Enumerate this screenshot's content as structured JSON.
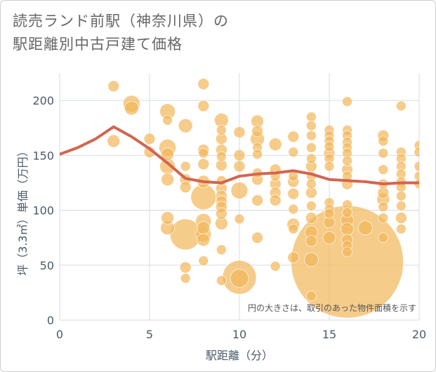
{
  "title_lines": [
    "読売ランド前駅（神奈川県）の",
    "駅距離別中古戸建て価格"
  ],
  "colors": {
    "bubble": "#f2b75a",
    "line": "#d3654f",
    "grid": "#d5dbe3",
    "plot_bg": "#ffffff"
  },
  "chart_data": {
    "type": "scatter",
    "title": "読売ランド前駅（神奈川県）の駅距離別中古戸建て価格",
    "xlabel": "駅距離（分）",
    "ylabel": "坪（3.3㎡）単価（万円）",
    "xlim": [
      0,
      20
    ],
    "ylim": [
      0,
      225
    ],
    "xticks": [
      0,
      5,
      10,
      15,
      20
    ],
    "yticks": [
      0,
      50,
      100,
      150,
      200
    ],
    "note": "円の大きさは、取引のあった物件面積を示す",
    "series": [
      {
        "type": "line",
        "x": [
          0,
          1,
          2,
          3,
          4,
          5,
          6,
          7,
          8,
          9,
          10,
          11,
          12,
          13,
          14,
          15,
          16,
          17,
          18,
          19,
          20
        ],
        "y": [
          151,
          157,
          165,
          176,
          167,
          156,
          143,
          129,
          126,
          125,
          131,
          133,
          134,
          136,
          133,
          128,
          127,
          126,
          124,
          125,
          125
        ]
      },
      {
        "type": "bubble",
        "points": [
          {
            "x": 3,
            "y": 213,
            "s": 8
          },
          {
            "x": 3,
            "y": 163,
            "s": 9
          },
          {
            "x": 4,
            "y": 197,
            "s": 12
          },
          {
            "x": 4,
            "y": 193,
            "s": 10
          },
          {
            "x": 5,
            "y": 165,
            "s": 8
          },
          {
            "x": 5,
            "y": 153,
            "s": 8
          },
          {
            "x": 6,
            "y": 190,
            "s": 11
          },
          {
            "x": 6,
            "y": 182,
            "s": 7
          },
          {
            "x": 6,
            "y": 157,
            "s": 12
          },
          {
            "x": 6,
            "y": 151,
            "s": 9
          },
          {
            "x": 6,
            "y": 140,
            "s": 11
          },
          {
            "x": 6,
            "y": 128,
            "s": 9
          },
          {
            "x": 6,
            "y": 93,
            "s": 9
          },
          {
            "x": 6,
            "y": 84,
            "s": 10
          },
          {
            "x": 7,
            "y": 177,
            "s": 10
          },
          {
            "x": 7,
            "y": 140,
            "s": 7
          },
          {
            "x": 7,
            "y": 128,
            "s": 8
          },
          {
            "x": 7,
            "y": 121,
            "s": 8
          },
          {
            "x": 7,
            "y": 78,
            "s": 22
          },
          {
            "x": 7,
            "y": 48,
            "s": 8
          },
          {
            "x": 7,
            "y": 38,
            "s": 7
          },
          {
            "x": 8,
            "y": 215,
            "s": 8
          },
          {
            "x": 8,
            "y": 195,
            "s": 8
          },
          {
            "x": 8,
            "y": 155,
            "s": 8
          },
          {
            "x": 8,
            "y": 152,
            "s": 7
          },
          {
            "x": 8,
            "y": 142,
            "s": 8
          },
          {
            "x": 8,
            "y": 126,
            "s": 9
          },
          {
            "x": 8,
            "y": 112,
            "s": 18
          },
          {
            "x": 8,
            "y": 90,
            "s": 11
          },
          {
            "x": 8,
            "y": 84,
            "s": 9
          },
          {
            "x": 8,
            "y": 78,
            "s": 11
          },
          {
            "x": 8,
            "y": 73,
            "s": 9
          },
          {
            "x": 8,
            "y": 54,
            "s": 7
          },
          {
            "x": 9,
            "y": 182,
            "s": 10
          },
          {
            "x": 9,
            "y": 173,
            "s": 7
          },
          {
            "x": 9,
            "y": 165,
            "s": 8
          },
          {
            "x": 9,
            "y": 155,
            "s": 8
          },
          {
            "x": 9,
            "y": 149,
            "s": 7
          },
          {
            "x": 9,
            "y": 141,
            "s": 8
          },
          {
            "x": 9,
            "y": 127,
            "s": 7
          },
          {
            "x": 9,
            "y": 120,
            "s": 8
          },
          {
            "x": 9,
            "y": 113,
            "s": 8
          },
          {
            "x": 9,
            "y": 108,
            "s": 8
          },
          {
            "x": 9,
            "y": 103,
            "s": 8
          },
          {
            "x": 9,
            "y": 97,
            "s": 8
          },
          {
            "x": 9,
            "y": 88,
            "s": 9
          },
          {
            "x": 9,
            "y": 64,
            "s": 7
          },
          {
            "x": 9,
            "y": 36,
            "s": 7
          },
          {
            "x": 10,
            "y": 171,
            "s": 8
          },
          {
            "x": 10,
            "y": 150,
            "s": 8
          },
          {
            "x": 10,
            "y": 140,
            "s": 8
          },
          {
            "x": 10,
            "y": 118,
            "s": 12
          },
          {
            "x": 10,
            "y": 92,
            "s": 7
          },
          {
            "x": 10,
            "y": 39,
            "s": 24
          },
          {
            "x": 10,
            "y": 38,
            "s": 13
          },
          {
            "x": 11,
            "y": 181,
            "s": 9
          },
          {
            "x": 11,
            "y": 172,
            "s": 8
          },
          {
            "x": 11,
            "y": 165,
            "s": 10
          },
          {
            "x": 11,
            "y": 157,
            "s": 7
          },
          {
            "x": 11,
            "y": 151,
            "s": 7
          },
          {
            "x": 11,
            "y": 134,
            "s": 7
          },
          {
            "x": 11,
            "y": 128,
            "s": 8
          },
          {
            "x": 11,
            "y": 109,
            "s": 8
          },
          {
            "x": 11,
            "y": 75,
            "s": 8
          },
          {
            "x": 12,
            "y": 160,
            "s": 9
          },
          {
            "x": 12,
            "y": 137,
            "s": 8
          },
          {
            "x": 12,
            "y": 131,
            "s": 7
          },
          {
            "x": 12,
            "y": 124,
            "s": 8
          },
          {
            "x": 12,
            "y": 116,
            "s": 8
          },
          {
            "x": 12,
            "y": 109,
            "s": 8
          },
          {
            "x": 12,
            "y": 49,
            "s": 7
          },
          {
            "x": 13,
            "y": 167,
            "s": 8
          },
          {
            "x": 13,
            "y": 153,
            "s": 7
          },
          {
            "x": 13,
            "y": 131,
            "s": 7
          },
          {
            "x": 13,
            "y": 126,
            "s": 8
          },
          {
            "x": 13,
            "y": 115,
            "s": 8
          },
          {
            "x": 13,
            "y": 101,
            "s": 7
          },
          {
            "x": 13,
            "y": 87,
            "s": 9
          },
          {
            "x": 13,
            "y": 83,
            "s": 7
          },
          {
            "x": 13,
            "y": 57,
            "s": 8
          },
          {
            "x": 14,
            "y": 185,
            "s": 7
          },
          {
            "x": 14,
            "y": 177,
            "s": 7
          },
          {
            "x": 14,
            "y": 168,
            "s": 7
          },
          {
            "x": 14,
            "y": 157,
            "s": 7
          },
          {
            "x": 14,
            "y": 147,
            "s": 7
          },
          {
            "x": 14,
            "y": 140,
            "s": 8
          },
          {
            "x": 14,
            "y": 131,
            "s": 7
          },
          {
            "x": 14,
            "y": 124,
            "s": 7
          },
          {
            "x": 14,
            "y": 116,
            "s": 8
          },
          {
            "x": 14,
            "y": 104,
            "s": 7
          },
          {
            "x": 14,
            "y": 93,
            "s": 8
          },
          {
            "x": 14,
            "y": 80,
            "s": 9
          },
          {
            "x": 14,
            "y": 72,
            "s": 8
          },
          {
            "x": 14,
            "y": 55,
            "s": 10
          },
          {
            "x": 14,
            "y": 22,
            "s": 7
          },
          {
            "x": 15,
            "y": 173,
            "s": 7
          },
          {
            "x": 15,
            "y": 168,
            "s": 7
          },
          {
            "x": 15,
            "y": 163,
            "s": 7
          },
          {
            "x": 15,
            "y": 158,
            "s": 7
          },
          {
            "x": 15,
            "y": 152,
            "s": 8
          },
          {
            "x": 15,
            "y": 147,
            "s": 7
          },
          {
            "x": 15,
            "y": 140,
            "s": 7
          },
          {
            "x": 15,
            "y": 107,
            "s": 7
          },
          {
            "x": 15,
            "y": 101,
            "s": 7
          },
          {
            "x": 15,
            "y": 97,
            "s": 7
          },
          {
            "x": 15,
            "y": 89,
            "s": 8
          },
          {
            "x": 15,
            "y": 75,
            "s": 9
          },
          {
            "x": 16,
            "y": 199,
            "s": 7
          },
          {
            "x": 16,
            "y": 173,
            "s": 7
          },
          {
            "x": 16,
            "y": 168,
            "s": 7
          },
          {
            "x": 16,
            "y": 162,
            "s": 7
          },
          {
            "x": 16,
            "y": 157,
            "s": 7
          },
          {
            "x": 16,
            "y": 152,
            "s": 7
          },
          {
            "x": 16,
            "y": 145,
            "s": 7
          },
          {
            "x": 16,
            "y": 137,
            "s": 8
          },
          {
            "x": 16,
            "y": 131,
            "s": 7
          },
          {
            "x": 16,
            "y": 124,
            "s": 8
          },
          {
            "x": 16,
            "y": 105,
            "s": 7
          },
          {
            "x": 16,
            "y": 98,
            "s": 7
          },
          {
            "x": 16,
            "y": 91,
            "s": 9
          },
          {
            "x": 16,
            "y": 83,
            "s": 9
          },
          {
            "x": 16,
            "y": 73,
            "s": 8
          },
          {
            "x": 16,
            "y": 68,
            "s": 7
          },
          {
            "x": 16,
            "y": 62,
            "s": 7
          },
          {
            "x": 16,
            "y": 53,
            "s": 80
          },
          {
            "x": 17,
            "y": 84,
            "s": 10
          },
          {
            "x": 18,
            "y": 168,
            "s": 8
          },
          {
            "x": 18,
            "y": 163,
            "s": 7
          },
          {
            "x": 18,
            "y": 152,
            "s": 7
          },
          {
            "x": 18,
            "y": 137,
            "s": 7
          },
          {
            "x": 18,
            "y": 124,
            "s": 7
          },
          {
            "x": 18,
            "y": 116,
            "s": 8
          },
          {
            "x": 18,
            "y": 110,
            "s": 9
          },
          {
            "x": 18,
            "y": 103,
            "s": 7
          },
          {
            "x": 18,
            "y": 93,
            "s": 7
          },
          {
            "x": 18,
            "y": 75,
            "s": 7
          },
          {
            "x": 19,
            "y": 195,
            "s": 7
          },
          {
            "x": 19,
            "y": 153,
            "s": 7
          },
          {
            "x": 19,
            "y": 147,
            "s": 7
          },
          {
            "x": 19,
            "y": 140,
            "s": 7
          },
          {
            "x": 19,
            "y": 133,
            "s": 7
          },
          {
            "x": 19,
            "y": 126,
            "s": 7
          },
          {
            "x": 19,
            "y": 121,
            "s": 7
          },
          {
            "x": 19,
            "y": 113,
            "s": 7
          },
          {
            "x": 19,
            "y": 104,
            "s": 7
          },
          {
            "x": 19,
            "y": 93,
            "s": 8
          },
          {
            "x": 19,
            "y": 83,
            "s": 7
          },
          {
            "x": 20,
            "y": 159,
            "s": 7
          },
          {
            "x": 20,
            "y": 153,
            "s": 7
          },
          {
            "x": 20,
            "y": 140,
            "s": 7
          },
          {
            "x": 20,
            "y": 131,
            "s": 7
          },
          {
            "x": 20,
            "y": 124,
            "s": 7
          }
        ]
      }
    ]
  }
}
